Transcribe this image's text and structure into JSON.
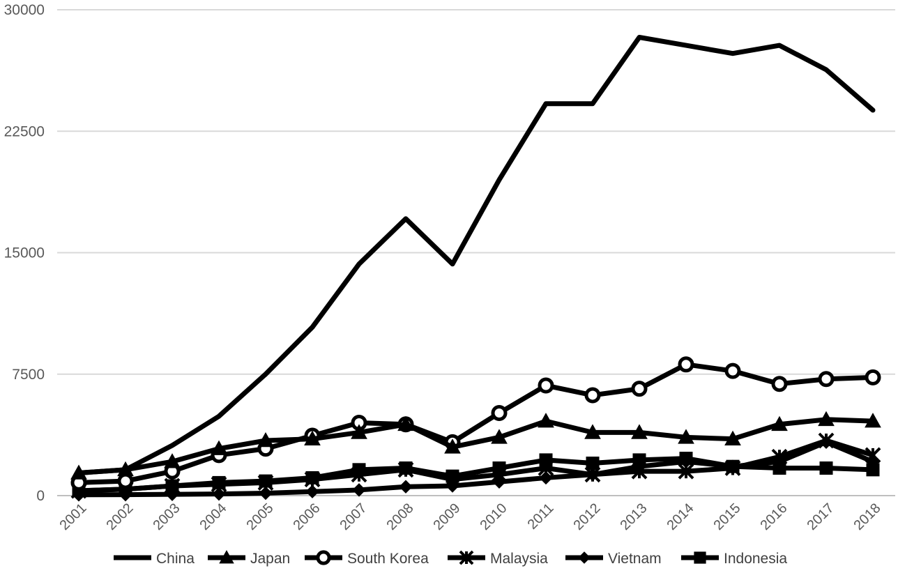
{
  "chart_data": {
    "type": "line",
    "title": "",
    "xlabel": "",
    "ylabel": "",
    "x": [
      "2001",
      "2002",
      "2003",
      "2004",
      "2005",
      "2006",
      "2007",
      "2008",
      "2009",
      "2010",
      "2011",
      "2012",
      "2013",
      "2014",
      "2015",
      "2016",
      "2017",
      "2018"
    ],
    "ylim": [
      0,
      30000
    ],
    "yticks": [
      "0",
      "7500",
      "15000",
      "22500",
      "30000"
    ],
    "grid": "horizontal",
    "legend_position": "bottom",
    "series": [
      {
        "name": "China",
        "marker": "none",
        "values": [
          1400,
          1600,
          3100,
          4900,
          7500,
          10400,
          14300,
          17100,
          14300,
          19500,
          24200,
          24200,
          28300,
          27800,
          27300,
          27800,
          26300,
          23800
        ]
      },
      {
        "name": "Japan",
        "marker": "triangle",
        "values": [
          1400,
          1600,
          2100,
          2900,
          3400,
          3500,
          3900,
          4400,
          3000,
          3600,
          4600,
          3900,
          3900,
          3600,
          3500,
          4400,
          4700,
          4600
        ]
      },
      {
        "name": "South Korea",
        "marker": "circle",
        "values": [
          800,
          900,
          1500,
          2500,
          2900,
          3700,
          4500,
          4400,
          3300,
          5100,
          6800,
          6200,
          6600,
          8100,
          7700,
          6900,
          7200,
          7300
        ]
      },
      {
        "name": "Malaysia",
        "marker": "star",
        "values": [
          300,
          400,
          600,
          700,
          800,
          1000,
          1300,
          1600,
          1000,
          1300,
          1700,
          1300,
          1500,
          1500,
          1700,
          2400,
          3400,
          2500
        ]
      },
      {
        "name": "Vietnam",
        "marker": "diamond",
        "values": [
          50,
          60,
          80,
          100,
          150,
          250,
          350,
          550,
          600,
          850,
          1100,
          1300,
          1800,
          2100,
          1800,
          2100,
          3300,
          2100
        ]
      },
      {
        "name": "Indonesia",
        "marker": "square",
        "values": [
          300,
          400,
          600,
          800,
          900,
          1100,
          1600,
          1700,
          1200,
          1700,
          2200,
          2000,
          2200,
          2300,
          1800,
          1700,
          1700,
          1600
        ]
      }
    ]
  }
}
